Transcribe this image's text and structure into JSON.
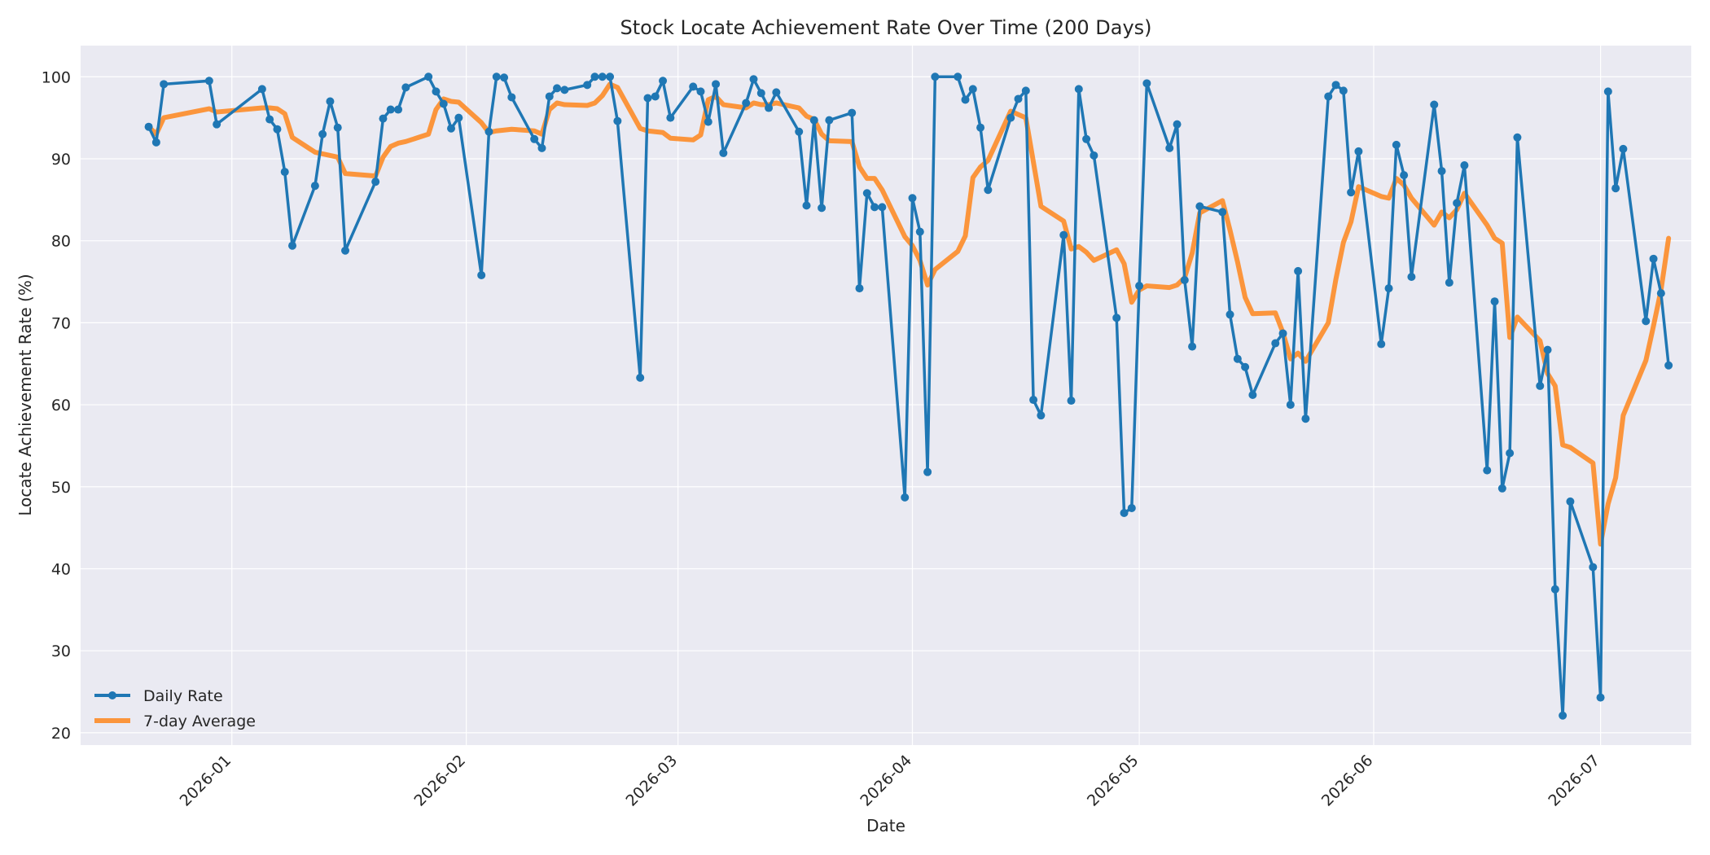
{
  "chart_data": {
    "type": "line",
    "title": "Stock Locate Achievement Rate Over Time (200 Days)",
    "xlabel": "Date",
    "ylabel": "Locate Achievement Rate (%)",
    "x_ticks": [
      "2026-01",
      "2026-02",
      "2026-03",
      "2026-04",
      "2026-05",
      "2026-06",
      "2026-07"
    ],
    "y_ticks": [
      20,
      30,
      40,
      50,
      60,
      70,
      80,
      90,
      100
    ],
    "xlim": [
      "2025-12-12",
      "2026-07-13"
    ],
    "ylim": [
      18.5,
      103.8
    ],
    "grid": true,
    "legend_position": "lower-left",
    "colors": {
      "daily": "#1f77b4",
      "average": "#ff7f0e",
      "plot_bg": "#eaeaf2",
      "grid": "#ffffff"
    },
    "series": [
      {
        "name": "Daily Rate",
        "marker": "circle",
        "points": [
          [
            "2025-12-21",
            93.9
          ],
          [
            "2025-12-22",
            92.0
          ],
          [
            "2025-12-23",
            99.1
          ],
          [
            "2025-12-29",
            99.5
          ],
          [
            "2025-12-30",
            94.2
          ],
          [
            "2026-01-05",
            98.5
          ],
          [
            "2026-01-06",
            94.8
          ],
          [
            "2026-01-07",
            93.6
          ],
          [
            "2026-01-08",
            88.4
          ],
          [
            "2026-01-09",
            79.4
          ],
          [
            "2026-01-12",
            86.7
          ],
          [
            "2026-01-13",
            93.0
          ],
          [
            "2026-01-14",
            97.0
          ],
          [
            "2026-01-15",
            93.8
          ],
          [
            "2026-01-16",
            78.8
          ],
          [
            "2026-01-20",
            87.2
          ],
          [
            "2026-01-21",
            94.9
          ],
          [
            "2026-01-22",
            96.0
          ],
          [
            "2026-01-23",
            96.0
          ],
          [
            "2026-01-24",
            98.7
          ],
          [
            "2026-01-27",
            100.0
          ],
          [
            "2026-01-28",
            98.2
          ],
          [
            "2026-01-29",
            96.7
          ],
          [
            "2026-01-30",
            93.7
          ],
          [
            "2026-01-31",
            95.0
          ],
          [
            "2026-02-03",
            75.8
          ],
          [
            "2026-02-04",
            93.3
          ],
          [
            "2026-02-05",
            100.0
          ],
          [
            "2026-02-06",
            99.9
          ],
          [
            "2026-02-07",
            97.5
          ],
          [
            "2026-02-10",
            92.4
          ],
          [
            "2026-02-11",
            91.3
          ],
          [
            "2026-02-12",
            97.6
          ],
          [
            "2026-02-13",
            98.6
          ],
          [
            "2026-02-14",
            98.4
          ],
          [
            "2026-02-17",
            99.0
          ],
          [
            "2026-02-18",
            100.0
          ],
          [
            "2026-02-19",
            100.0
          ],
          [
            "2026-02-20",
            100.0
          ],
          [
            "2026-02-21",
            94.6
          ],
          [
            "2026-02-24",
            63.3
          ],
          [
            "2026-02-25",
            97.4
          ],
          [
            "2026-02-26",
            97.6
          ],
          [
            "2026-02-27",
            99.5
          ],
          [
            "2026-02-28",
            95.0
          ],
          [
            "2026-03-03",
            98.8
          ],
          [
            "2026-03-04",
            98.2
          ],
          [
            "2026-03-05",
            94.5
          ],
          [
            "2026-03-06",
            99.1
          ],
          [
            "2026-03-07",
            90.7
          ],
          [
            "2026-03-10",
            96.8
          ],
          [
            "2026-03-11",
            99.7
          ],
          [
            "2026-03-12",
            98.0
          ],
          [
            "2026-03-13",
            96.2
          ],
          [
            "2026-03-14",
            98.1
          ],
          [
            "2026-03-17",
            93.3
          ],
          [
            "2026-03-18",
            84.3
          ],
          [
            "2026-03-19",
            94.7
          ],
          [
            "2026-03-20",
            84.0
          ],
          [
            "2026-03-21",
            94.7
          ],
          [
            "2026-03-24",
            95.6
          ],
          [
            "2026-03-25",
            74.2
          ],
          [
            "2026-03-26",
            85.8
          ],
          [
            "2026-03-27",
            84.1
          ],
          [
            "2026-03-28",
            84.1
          ],
          [
            "2026-03-31",
            48.7
          ],
          [
            "2026-04-01",
            85.2
          ],
          [
            "2026-04-02",
            81.1
          ],
          [
            "2026-04-03",
            51.8
          ],
          [
            "2026-04-04",
            100.0
          ],
          [
            "2026-04-07",
            100.0
          ],
          [
            "2026-04-08",
            97.2
          ],
          [
            "2026-04-09",
            98.5
          ],
          [
            "2026-04-10",
            93.8
          ],
          [
            "2026-04-11",
            86.2
          ],
          [
            "2026-04-14",
            95.0
          ],
          [
            "2026-04-15",
            97.3
          ],
          [
            "2026-04-16",
            98.3
          ],
          [
            "2026-04-17",
            60.6
          ],
          [
            "2026-04-18",
            58.7
          ],
          [
            "2026-04-21",
            80.7
          ],
          [
            "2026-04-22",
            60.5
          ],
          [
            "2026-04-23",
            98.5
          ],
          [
            "2026-04-24",
            92.4
          ],
          [
            "2026-04-25",
            90.4
          ],
          [
            "2026-04-28",
            70.6
          ],
          [
            "2026-04-29",
            46.8
          ],
          [
            "2026-04-30",
            47.4
          ],
          [
            "2026-05-01",
            74.5
          ],
          [
            "2026-05-02",
            99.2
          ],
          [
            "2026-05-05",
            91.3
          ],
          [
            "2026-05-06",
            94.2
          ],
          [
            "2026-05-07",
            75.2
          ],
          [
            "2026-05-08",
            67.1
          ],
          [
            "2026-05-09",
            84.2
          ],
          [
            "2026-05-12",
            83.5
          ],
          [
            "2026-05-13",
            71.0
          ],
          [
            "2026-05-14",
            65.6
          ],
          [
            "2026-05-15",
            64.6
          ],
          [
            "2026-05-16",
            61.2
          ],
          [
            "2026-05-19",
            67.5
          ],
          [
            "2026-05-20",
            68.7
          ],
          [
            "2026-05-21",
            60.0
          ],
          [
            "2026-05-22",
            76.3
          ],
          [
            "2026-05-23",
            58.3
          ],
          [
            "2026-05-26",
            97.6
          ],
          [
            "2026-05-27",
            99.0
          ],
          [
            "2026-05-28",
            98.3
          ],
          [
            "2026-05-29",
            85.9
          ],
          [
            "2026-05-30",
            90.9
          ],
          [
            "2026-06-02",
            67.4
          ],
          [
            "2026-06-03",
            74.2
          ],
          [
            "2026-06-04",
            91.7
          ],
          [
            "2026-06-05",
            88.0
          ],
          [
            "2026-06-06",
            75.6
          ],
          [
            "2026-06-09",
            96.6
          ],
          [
            "2026-06-10",
            88.5
          ],
          [
            "2026-06-11",
            74.9
          ],
          [
            "2026-06-12",
            84.6
          ],
          [
            "2026-06-13",
            89.2
          ],
          [
            "2026-06-16",
            52.0
          ],
          [
            "2026-06-17",
            72.6
          ],
          [
            "2026-06-18",
            49.8
          ],
          [
            "2026-06-19",
            54.1
          ],
          [
            "2026-06-20",
            92.6
          ],
          [
            "2026-06-23",
            62.3
          ],
          [
            "2026-06-24",
            66.7
          ],
          [
            "2026-06-25",
            37.5
          ],
          [
            "2026-06-26",
            22.1
          ],
          [
            "2026-06-27",
            48.2
          ],
          [
            "2026-06-30",
            40.2
          ],
          [
            "2026-07-01",
            24.3
          ],
          [
            "2026-07-02",
            98.2
          ],
          [
            "2026-07-03",
            86.4
          ],
          [
            "2026-07-04",
            91.2
          ],
          [
            "2026-07-07",
            70.2
          ],
          [
            "2026-07-08",
            77.8
          ],
          [
            "2026-07-09",
            73.6
          ],
          [
            "2026-07-10",
            64.8
          ]
        ]
      },
      {
        "name": "7-day Average",
        "marker": "none",
        "points": [
          [
            "2025-12-21",
            93.9
          ],
          [
            "2025-12-22",
            93.0
          ],
          [
            "2025-12-23",
            95.0
          ],
          [
            "2025-12-29",
            96.1
          ],
          [
            "2025-12-30",
            95.7
          ],
          [
            "2026-01-05",
            96.2
          ],
          [
            "2026-01-06",
            96.2
          ],
          [
            "2026-01-07",
            96.1
          ],
          [
            "2026-01-08",
            95.5
          ],
          [
            "2026-01-09",
            92.6
          ],
          [
            "2026-01-12",
            90.8
          ],
          [
            "2026-01-13",
            90.6
          ],
          [
            "2026-01-14",
            90.4
          ],
          [
            "2026-01-15",
            90.2
          ],
          [
            "2026-01-16",
            88.2
          ],
          [
            "2026-01-20",
            87.9
          ],
          [
            "2026-01-21",
            90.2
          ],
          [
            "2026-01-22",
            91.5
          ],
          [
            "2026-01-23",
            91.9
          ],
          [
            "2026-01-24",
            92.1
          ],
          [
            "2026-01-27",
            93.0
          ],
          [
            "2026-01-28",
            96.0
          ],
          [
            "2026-01-29",
            97.3
          ],
          [
            "2026-01-30",
            97.0
          ],
          [
            "2026-01-31",
            96.9
          ],
          [
            "2026-02-03",
            94.4
          ],
          [
            "2026-02-04",
            93.2
          ],
          [
            "2026-02-05",
            93.4
          ],
          [
            "2026-02-06",
            93.5
          ],
          [
            "2026-02-07",
            93.6
          ],
          [
            "2026-02-10",
            93.4
          ],
          [
            "2026-02-11",
            93.0
          ],
          [
            "2026-02-12",
            96.0
          ],
          [
            "2026-02-13",
            96.8
          ],
          [
            "2026-02-14",
            96.6
          ],
          [
            "2026-02-17",
            96.5
          ],
          [
            "2026-02-18",
            96.8
          ],
          [
            "2026-02-19",
            97.7
          ],
          [
            "2026-02-20",
            99.1
          ],
          [
            "2026-02-21",
            98.7
          ],
          [
            "2026-02-24",
            93.7
          ],
          [
            "2026-02-25",
            93.4
          ],
          [
            "2026-02-26",
            93.3
          ],
          [
            "2026-02-27",
            93.2
          ],
          [
            "2026-02-28",
            92.5
          ],
          [
            "2026-03-03",
            92.3
          ],
          [
            "2026-03-04",
            92.9
          ],
          [
            "2026-03-05",
            97.2
          ],
          [
            "2026-03-06",
            97.6
          ],
          [
            "2026-03-07",
            96.6
          ],
          [
            "2026-03-10",
            96.2
          ],
          [
            "2026-03-11",
            96.8
          ],
          [
            "2026-03-12",
            96.6
          ],
          [
            "2026-03-13",
            96.6
          ],
          [
            "2026-03-14",
            96.8
          ],
          [
            "2026-03-17",
            96.2
          ],
          [
            "2026-03-18",
            95.2
          ],
          [
            "2026-03-19",
            94.8
          ],
          [
            "2026-03-20",
            93.0
          ],
          [
            "2026-03-21",
            92.2
          ],
          [
            "2026-03-24",
            92.1
          ],
          [
            "2026-03-25",
            89.0
          ],
          [
            "2026-03-26",
            87.6
          ],
          [
            "2026-03-27",
            87.6
          ],
          [
            "2026-03-28",
            86.2
          ],
          [
            "2026-03-31",
            80.5
          ],
          [
            "2026-04-01",
            79.4
          ],
          [
            "2026-04-02",
            77.6
          ],
          [
            "2026-04-03",
            74.6
          ],
          [
            "2026-04-04",
            76.5
          ],
          [
            "2026-04-07",
            78.7
          ],
          [
            "2026-04-08",
            80.6
          ],
          [
            "2026-04-09",
            87.7
          ],
          [
            "2026-04-10",
            89.0
          ],
          [
            "2026-04-11",
            89.8
          ],
          [
            "2026-04-14",
            95.8
          ],
          [
            "2026-04-15",
            95.4
          ],
          [
            "2026-04-16",
            95.0
          ],
          [
            "2026-04-17",
            89.6
          ],
          [
            "2026-04-18",
            84.2
          ],
          [
            "2026-04-21",
            82.4
          ],
          [
            "2026-04-22",
            79.0
          ],
          [
            "2026-04-23",
            79.3
          ],
          [
            "2026-04-24",
            78.6
          ],
          [
            "2026-04-25",
            77.6
          ],
          [
            "2026-04-28",
            78.9
          ],
          [
            "2026-04-29",
            77.2
          ],
          [
            "2026-04-30",
            72.5
          ],
          [
            "2026-05-01",
            74.0
          ],
          [
            "2026-05-02",
            74.5
          ],
          [
            "2026-05-05",
            74.3
          ],
          [
            "2026-05-06",
            74.6
          ],
          [
            "2026-05-07",
            75.5
          ],
          [
            "2026-05-08",
            78.5
          ],
          [
            "2026-05-09",
            83.4
          ],
          [
            "2026-05-12",
            84.9
          ],
          [
            "2026-05-13",
            81.3
          ],
          [
            "2026-05-14",
            77.4
          ],
          [
            "2026-05-15",
            73.1
          ],
          [
            "2026-05-16",
            71.1
          ],
          [
            "2026-05-19",
            71.2
          ],
          [
            "2026-05-20",
            68.8
          ],
          [
            "2026-05-21",
            65.6
          ],
          [
            "2026-05-22",
            66.3
          ],
          [
            "2026-05-23",
            65.3
          ],
          [
            "2026-05-26",
            70.0
          ],
          [
            "2026-05-27",
            75.3
          ],
          [
            "2026-05-28",
            79.8
          ],
          [
            "2026-05-29",
            82.3
          ],
          [
            "2026-05-30",
            86.6
          ],
          [
            "2026-06-02",
            85.4
          ],
          [
            "2026-06-03",
            85.2
          ],
          [
            "2026-06-04",
            87.6
          ],
          [
            "2026-06-05",
            86.8
          ],
          [
            "2026-06-06",
            85.2
          ],
          [
            "2026-06-09",
            81.9
          ],
          [
            "2026-06-10",
            83.5
          ],
          [
            "2026-06-11",
            82.8
          ],
          [
            "2026-06-12",
            83.8
          ],
          [
            "2026-06-13",
            85.8
          ],
          [
            "2026-06-16",
            81.9
          ],
          [
            "2026-06-17",
            80.3
          ],
          [
            "2026-06-18",
            79.7
          ],
          [
            "2026-06-19",
            68.2
          ],
          [
            "2026-06-20",
            70.7
          ],
          [
            "2026-06-23",
            67.8
          ],
          [
            "2026-06-24",
            63.8
          ],
          [
            "2026-06-25",
            62.3
          ],
          [
            "2026-06-26",
            55.1
          ],
          [
            "2026-06-27",
            54.8
          ],
          [
            "2026-06-30",
            52.9
          ],
          [
            "2026-07-01",
            43.0
          ],
          [
            "2026-07-02",
            47.9
          ],
          [
            "2026-07-03",
            51.1
          ],
          [
            "2026-07-04",
            58.7
          ],
          [
            "2026-07-07",
            65.4
          ],
          [
            "2026-07-08",
            69.6
          ],
          [
            "2026-07-09",
            74.0
          ],
          [
            "2026-07-10",
            80.3
          ]
        ]
      }
    ]
  }
}
